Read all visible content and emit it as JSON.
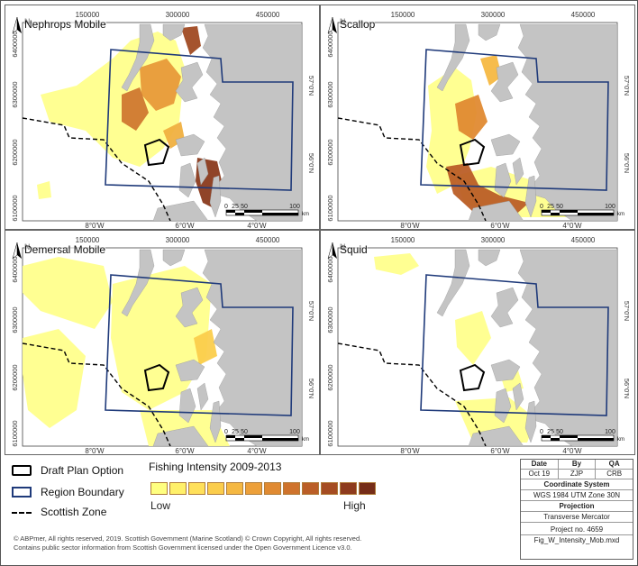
{
  "panels": [
    {
      "title": "Nephrops Mobile",
      "intensity": "high"
    },
    {
      "title": "Scallop",
      "intensity": "med"
    },
    {
      "title": "Demersal Mobile",
      "intensity": "low"
    },
    {
      "title": "Squid",
      "intensity": "min"
    }
  ],
  "axes": {
    "eastings": [
      "150000",
      "300000",
      "450000"
    ],
    "longitudes": [
      "8°0'W",
      "6°0'W",
      "4°0'W"
    ],
    "northings": [
      "6400000",
      "6300000",
      "6200000",
      "6100000"
    ],
    "latitudes": [
      "57°0'N",
      "56°0'N"
    ]
  },
  "north_label": "N",
  "scale": {
    "labels": [
      "0",
      "25",
      "50",
      "100"
    ],
    "unit": "km"
  },
  "legend": {
    "draft_plan": "Draft Plan Option",
    "region": "Region Boundary",
    "zone": "Scottish Zone",
    "intensity_title": "Fishing Intensity 2009-2013",
    "low": "Low",
    "high": "High",
    "ramp": [
      "#ffff80",
      "#fff06a",
      "#ffe05a",
      "#fbcd4c",
      "#f5b842",
      "#eda03a",
      "#e08a32",
      "#cf732c",
      "#bb5e27",
      "#a54c22",
      "#8e3b1d",
      "#762d18"
    ]
  },
  "colors": {
    "land": "#c4c4c4",
    "sea": "#ffffff",
    "region": "#1f3a7a",
    "yellow": "#ffff8c",
    "orange": "#f0a040",
    "dark": "#8a3a1c"
  },
  "copyright": {
    "line1": "© ABPmer, All rights reserved, 2019. Scottish Government (Marine Scotland) © Crown Copyright, All rights reserved.",
    "line2": "Contains public sector information from Scottish Government licensed under the Open Government Licence v3.0."
  },
  "info": {
    "date_h": "Date",
    "by_h": "By",
    "qa_h": "QA",
    "date": "Oct 19",
    "by": "ZJP",
    "qa": "CRB",
    "cs_h": "Coordinate System",
    "cs": "WGS 1984 UTM Zone 30N",
    "proj_h": "Projection",
    "proj": "Transverse Mercator",
    "project": "Project no. 4659",
    "file": "Fig_W_Intensity_Mob.mxd"
  }
}
